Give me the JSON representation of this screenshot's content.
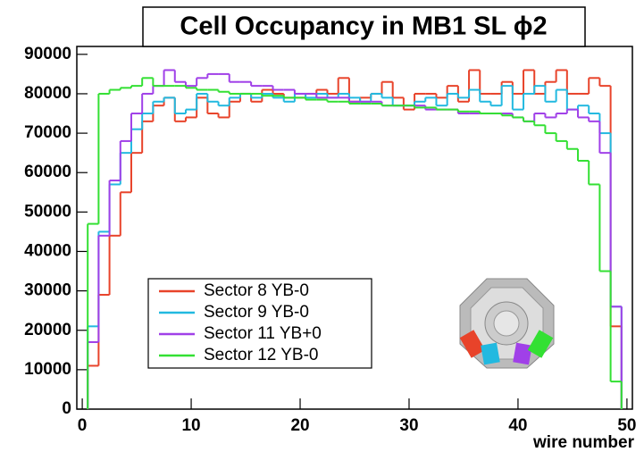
{
  "chart_data": {
    "type": "histogram",
    "title": "Cell Occupancy in MB1 SL ϕ2",
    "xlabel": "wire number",
    "bins": [
      0.5,
      1.5,
      2.5,
      3.5,
      4.5,
      5.5,
      6.5,
      7.5,
      8.5,
      9.5,
      10.5,
      11.5,
      12.5,
      13.5,
      14.5,
      15.5,
      16.5,
      17.5,
      18.5,
      19.5,
      20.5,
      21.5,
      22.5,
      23.5,
      24.5,
      25.5,
      26.5,
      27.5,
      28.5,
      29.5,
      30.5,
      31.5,
      32.5,
      33.5,
      34.5,
      35.5,
      36.5,
      37.5,
      38.5,
      39.5,
      40.5,
      41.5,
      42.5,
      43.5,
      44.5,
      45.5,
      46.5,
      47.5,
      48.5,
      49.5
    ],
    "series": [
      {
        "name": "Sector 8 YB-0",
        "color": "#e8432a",
        "values": [
          11000,
          29000,
          44000,
          55000,
          65000,
          73000,
          77000,
          79000,
          73000,
          74000,
          79000,
          75000,
          74000,
          78000,
          80000,
          78000,
          81000,
          80000,
          79000,
          79000,
          80000,
          81000,
          80000,
          84000,
          78000,
          79000,
          80000,
          83000,
          79000,
          76000,
          80000,
          80000,
          79000,
          82000,
          78000,
          86000,
          80000,
          80000,
          83000,
          80000,
          86000,
          80000,
          83000,
          86000,
          80000,
          80000,
          84000,
          82000,
          21000
        ]
      },
      {
        "name": "Sector 9 YB-0",
        "color": "#22b9e0",
        "values": [
          21000,
          45000,
          57000,
          65000,
          71000,
          75000,
          78000,
          79000,
          75000,
          76000,
          80000,
          78000,
          77000,
          79000,
          80000,
          79000,
          80000,
          79000,
          78000,
          80000,
          79000,
          80000,
          79000,
          80000,
          79000,
          78000,
          80000,
          79000,
          77000,
          77000,
          78000,
          79000,
          77000,
          80000,
          79000,
          81000,
          78000,
          77000,
          82000,
          76000,
          80000,
          82000,
          78000,
          81000,
          76000,
          77000,
          75000,
          70000,
          26000
        ]
      },
      {
        "name": "Sector 11 YB+0",
        "color": "#a040e8",
        "values": [
          17000,
          44000,
          58000,
          68000,
          75000,
          80000,
          82000,
          86000,
          83000,
          82000,
          84000,
          85000,
          85000,
          83000,
          83000,
          82000,
          82000,
          81000,
          81000,
          80000,
          80000,
          79000,
          79000,
          79000,
          78000,
          78000,
          78000,
          77000,
          77000,
          77000,
          77000,
          76000,
          76000,
          76000,
          75000,
          75000,
          75000,
          75000,
          75000,
          74000,
          73000,
          75000,
          74000,
          75000,
          76000,
          74000,
          73000,
          65000,
          26000
        ]
      },
      {
        "name": "Sector 12 YB-0",
        "color": "#33e033",
        "values": [
          47000,
          80000,
          81000,
          81500,
          82000,
          84000,
          82000,
          82000,
          82000,
          81500,
          81000,
          81000,
          80500,
          80000,
          80000,
          80000,
          79500,
          79500,
          79000,
          79000,
          78500,
          78500,
          78000,
          78000,
          77500,
          77500,
          77500,
          77000,
          77000,
          77000,
          76500,
          76500,
          76000,
          76000,
          75500,
          75500,
          75000,
          75000,
          74500,
          74000,
          73000,
          72000,
          70000,
          68000,
          66000,
          63000,
          57000,
          35000,
          7000
        ]
      }
    ],
    "xlim": [
      -0.5,
      50.5
    ],
    "xticks": [
      0,
      10,
      20,
      30,
      40,
      50
    ],
    "ylim": [
      0,
      92000
    ],
    "yticks": [
      0,
      10000,
      20000,
      30000,
      40000,
      50000,
      60000,
      70000,
      80000,
      90000
    ]
  }
}
